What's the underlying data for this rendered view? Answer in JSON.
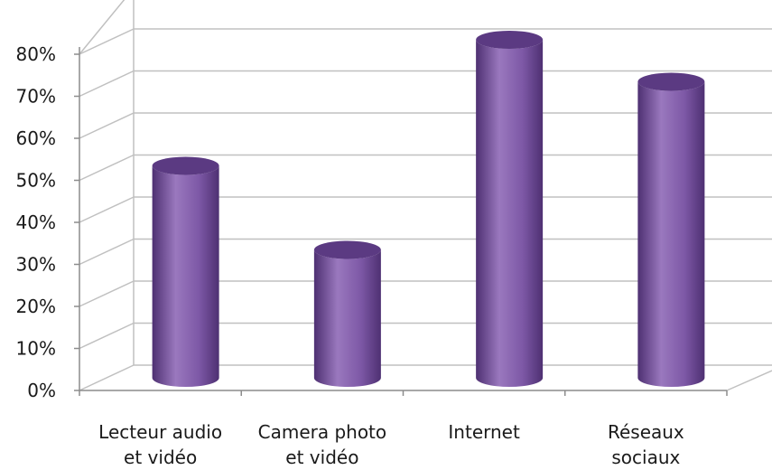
{
  "chart_data": {
    "type": "bar",
    "style": "3d-cylinder",
    "categories": [
      "Lecteur audio\net vidéo",
      "Camera photo\net vidéo",
      "Internet",
      "Réseaux\nsociaux"
    ],
    "values": [
      0.5,
      0.3,
      0.8,
      0.7
    ],
    "yticks": [
      "0%",
      "10%",
      "20%",
      "30%",
      "40%",
      "50%",
      "60%",
      "70%",
      "80%"
    ],
    "ylim": [
      0,
      0.8
    ],
    "grid": true,
    "legend": "none",
    "title": "",
    "xlabel": "",
    "ylabel": "",
    "colors": {
      "bar_light": "#9a78be",
      "bar_mid": "#7d58a6",
      "bar_dark": "#4e3072",
      "bar_top": "#5b3a82",
      "grid": "#c0c0c0",
      "axis": "#8c8c8c"
    }
  }
}
